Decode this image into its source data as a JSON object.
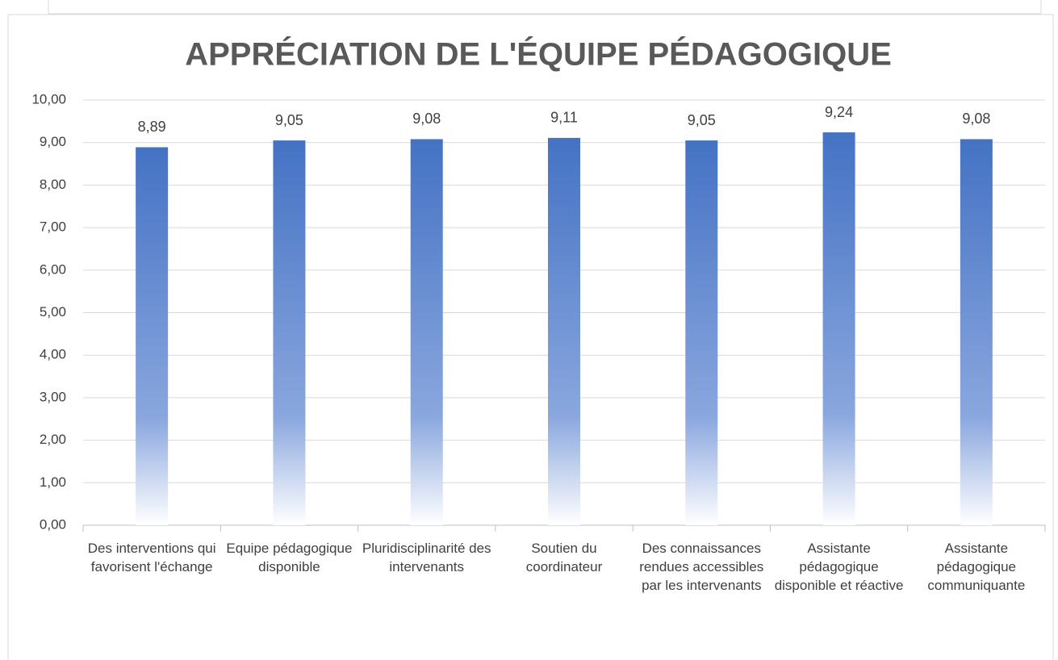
{
  "chart_data": {
    "type": "bar",
    "title": "APPRÉCIATION DE L'ÉQUIPE PÉDAGOGIQUE",
    "categories": [
      "Des interventions qui favorisent l'échange",
      "Equipe pédagogique disponible",
      "Pluridisciplinarité des intervenants",
      "Soutien du coordinateur",
      "Des connaissances rendues accessibles par les intervenants",
      "Assistante pédagogique disponible et réactive",
      "Assistante pédagogique communiquante"
    ],
    "values": [
      8.89,
      9.05,
      9.08,
      9.11,
      9.05,
      9.24,
      9.08
    ],
    "value_labels": [
      "8,89",
      "9,05",
      "9,08",
      "9,11",
      "9,05",
      "9,24",
      "9,08"
    ],
    "color": "#4472c4",
    "ylim": [
      0,
      10
    ],
    "yticks": [
      {
        "value": 0,
        "label": "0,00"
      },
      {
        "value": 1,
        "label": "1,00"
      },
      {
        "value": 2,
        "label": "2,00"
      },
      {
        "value": 3,
        "label": "3,00"
      },
      {
        "value": 4,
        "label": "4,00"
      },
      {
        "value": 5,
        "label": "5,00"
      },
      {
        "value": 6,
        "label": "6,00"
      },
      {
        "value": 7,
        "label": "7,00"
      },
      {
        "value": 8,
        "label": "8,00"
      },
      {
        "value": 9,
        "label": "9,00"
      },
      {
        "value": 10,
        "label": "10,00"
      }
    ],
    "grid": true
  }
}
